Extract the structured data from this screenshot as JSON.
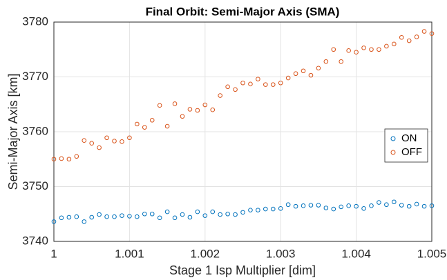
{
  "chart_data": {
    "type": "scatter",
    "title": "Final Orbit: Semi-Major Axis (SMA)",
    "xlabel": "Stage 1 Isp Multiplier [dim]",
    "ylabel": "Semi-Major Axis [km]",
    "x": [
      1,
      1.0001,
      1.0002,
      1.0003,
      1.0004,
      1.0005,
      1.0006,
      1.0007,
      1.0008,
      1.0009,
      1.001,
      1.0011,
      1.0012,
      1.0013,
      1.0014,
      1.0015,
      1.0016,
      1.0017,
      1.0018,
      1.0019,
      1.002,
      1.0021,
      1.0022,
      1.0023,
      1.0024,
      1.0025,
      1.0026,
      1.0027,
      1.0028,
      1.0029,
      1.003,
      1.0031,
      1.0032,
      1.0033,
      1.0034,
      1.0035,
      1.0036,
      1.0037,
      1.0038,
      1.0039,
      1.004,
      1.0041,
      1.0042,
      1.0043,
      1.0044,
      1.0045,
      1.0046,
      1.0047,
      1.0048,
      1.0049,
      1.005
    ],
    "series": [
      {
        "name": "ON",
        "color": "#0072bd",
        "values": [
          3743.6,
          3744.3,
          3744.4,
          3744.5,
          3743.6,
          3744.4,
          3744.9,
          3744.5,
          3744.5,
          3744.7,
          3744.6,
          3744.5,
          3745.0,
          3745.0,
          3744.3,
          3745.4,
          3744.3,
          3744.9,
          3744.4,
          3745.4,
          3744.7,
          3745.4,
          3744.9,
          3745.0,
          3744.9,
          3745.3,
          3745.7,
          3745.7,
          3745.9,
          3745.9,
          3746.0,
          3746.7,
          3746.4,
          3746.5,
          3746.6,
          3746.6,
          3746.1,
          3745.9,
          3746.3,
          3746.5,
          3746.4,
          3746.0,
          3746.5,
          3747.1,
          3746.7,
          3747.2,
          3746.6,
          3746.4,
          3746.8,
          3746.4,
          3746.5
        ]
      },
      {
        "name": "OFF",
        "color": "#d95319",
        "values": [
          3755.0,
          3755.1,
          3755.0,
          3755.5,
          3758.4,
          3757.9,
          3757.1,
          3758.9,
          3758.3,
          3758.2,
          3758.9,
          3761.4,
          3760.8,
          3762.1,
          3764.8,
          3761.0,
          3765.1,
          3762.8,
          3764.1,
          3763.9,
          3764.9,
          3764.0,
          3766.6,
          3768.2,
          3767.7,
          3768.9,
          3768.7,
          3769.6,
          3768.6,
          3768.6,
          3768.9,
          3769.8,
          3770.6,
          3771.1,
          3770.3,
          3771.6,
          3772.8,
          3775.0,
          3772.8,
          3774.8,
          3774.5,
          3775.3,
          3775.0,
          3775.0,
          3775.6,
          3776.0,
          3777.2,
          3776.6,
          3777.3,
          3778.3,
          3777.9
        ]
      }
    ],
    "xlim": [
      1,
      1.005
    ],
    "xticks": [
      1,
      1.001,
      1.002,
      1.003,
      1.004,
      1.005
    ],
    "ylim": [
      3740,
      3780
    ],
    "yticks": [
      3740,
      3750,
      3760,
      3770,
      3780
    ],
    "grid": true,
    "legend": "east"
  }
}
